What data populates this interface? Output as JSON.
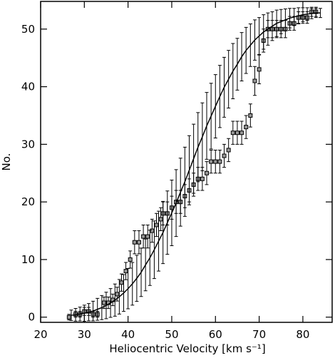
{
  "chart_data": {
    "type": "errorbar",
    "xlabel": "Heliocentric Velocity [km s⁻¹]",
    "ylabel": "No.",
    "xlim": [
      20,
      86.7
    ],
    "ylim": [
      -0.9,
      54.8
    ],
    "xticks": [
      20,
      30,
      40,
      50,
      60,
      70,
      80
    ],
    "yticks": [
      0,
      10,
      20,
      30,
      40,
      50
    ],
    "series": [
      {
        "style": "points",
        "color": "#000000",
        "x": [
          26.5,
          28,
          29,
          30,
          31,
          32,
          33,
          34.5,
          35.5,
          36.5,
          37.5,
          38.5,
          39.5,
          40.5,
          41.5,
          42.5,
          43.5,
          44.5,
          45.5,
          46.5,
          47.5,
          48,
          49,
          50,
          51,
          52,
          53,
          54,
          55,
          56,
          57,
          58,
          59,
          60,
          61,
          62,
          63,
          64,
          65,
          66,
          67,
          68,
          69,
          70,
          71,
          72,
          73,
          74,
          75,
          76,
          77,
          78,
          79,
          80,
          81,
          82,
          83
        ],
        "values": [
          0,
          0.5,
          0.5,
          1,
          1,
          0.5,
          0.5,
          2.5,
          2.5,
          3,
          4,
          6,
          8,
          10,
          13,
          13,
          14,
          14,
          15,
          16,
          17,
          18,
          18,
          19,
          20,
          20,
          21,
          22,
          23,
          24,
          24,
          25,
          27,
          27,
          27,
          28,
          29,
          32,
          32,
          32,
          33,
          35,
          41,
          43,
          48,
          50,
          50,
          50,
          50,
          50,
          51,
          51,
          52,
          52,
          52,
          53,
          53
        ],
        "errors": [
          0.5,
          0.5,
          0.5,
          0.7,
          0.7,
          0.5,
          0.5,
          1,
          1,
          1,
          1.2,
          1.5,
          1.5,
          1.5,
          2,
          2,
          2,
          2,
          2,
          2,
          2,
          2,
          2,
          2,
          2,
          2,
          2,
          2,
          2,
          2,
          2,
          2,
          2,
          2,
          2,
          2,
          2,
          2,
          2,
          2,
          2,
          2,
          2.5,
          2.5,
          2,
          1.5,
          1.5,
          1.5,
          1.5,
          1.5,
          1.2,
          1.2,
          1,
          1,
          1,
          0.8,
          0.8
        ]
      },
      {
        "style": "curve",
        "color": "#000000",
        "x": [
          27,
          28,
          29,
          30,
          31,
          32,
          33,
          34,
          35,
          36,
          37,
          38,
          39,
          40,
          41,
          42,
          43,
          44,
          45,
          46,
          47,
          48,
          49,
          50,
          51,
          52,
          53,
          54,
          55,
          56,
          57,
          58,
          59,
          60,
          61,
          62,
          63,
          64,
          65,
          66,
          67,
          68,
          69,
          70,
          71,
          72,
          73,
          74,
          75,
          76,
          77,
          78,
          79,
          80,
          81,
          82,
          83,
          84
        ],
        "values": [
          0.33,
          0.42,
          0.54,
          0.68,
          0.86,
          1.07,
          1.36,
          1.66,
          2.03,
          2.46,
          2.96,
          3.54,
          4.2,
          4.95,
          5.79,
          6.74,
          7.79,
          9.07,
          10.3,
          11.7,
          13.2,
          14.7,
          16.4,
          18.1,
          19.8,
          21.7,
          23.5,
          25.5,
          27.5,
          29.5,
          31.3,
          33.2,
          34.9,
          36.6,
          38.3,
          39.9,
          41.3,
          42.7,
          43.9,
          45.2,
          46.3,
          47.2,
          48.1,
          48.8,
          49.5,
          50.0,
          50.5,
          51.0,
          51.3,
          51.6,
          51.9,
          52.1,
          52.3,
          52.5,
          52.6,
          52.7,
          52.8,
          52.8
        ],
        "errors": [
          0.9,
          1.1,
          1.2,
          1.4,
          1.5,
          1.7,
          1.9,
          2.1,
          2.3,
          2.5,
          2.8,
          3.0,
          3.2,
          3.5,
          3.7,
          4.0,
          4.2,
          4.5,
          4.8,
          5.0,
          5.2,
          5.4,
          5.5,
          5.7,
          5.8,
          5.9,
          6.0,
          6.0,
          6.0,
          6.0,
          5.9,
          5.8,
          5.7,
          5.5,
          5.4,
          5.2,
          5.0,
          4.8,
          4.5,
          4.2,
          4.0,
          3.7,
          3.5,
          3.2,
          3.0,
          2.8,
          2.5,
          2.3,
          2.1,
          1.9,
          1.7,
          1.5,
          1.4,
          1.2,
          1.1,
          0.9,
          0.8,
          0.8
        ]
      }
    ]
  }
}
